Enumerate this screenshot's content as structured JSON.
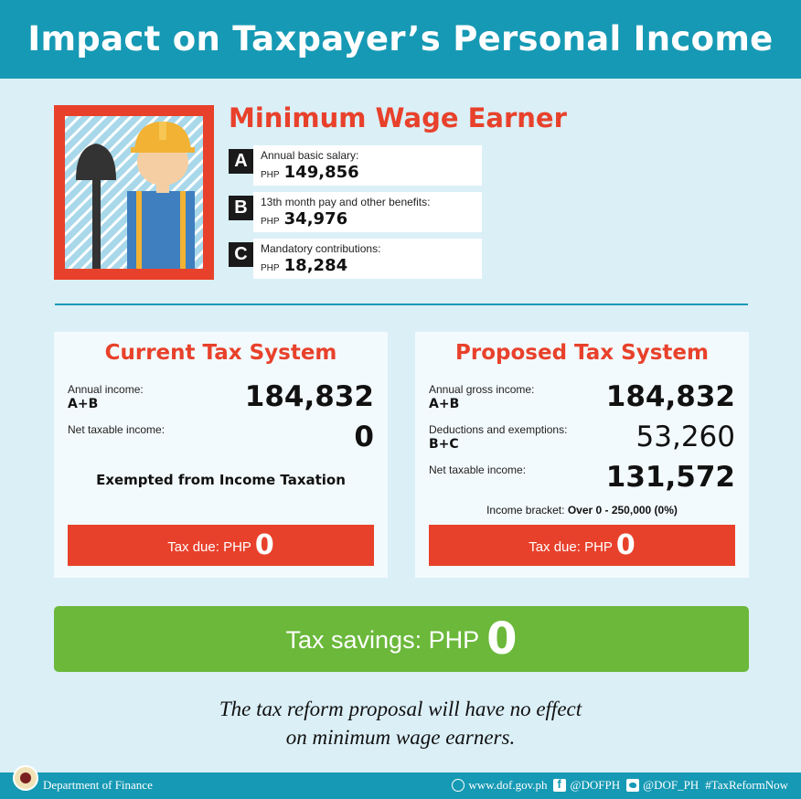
{
  "header": {
    "title": "Impact on Taxpayer’s Personal Income"
  },
  "profile": {
    "title": "Minimum Wage Earner",
    "items": [
      {
        "letter": "A",
        "label": "Annual basic salary:",
        "currency": "PHP",
        "value": "149,856"
      },
      {
        "letter": "B",
        "label": "13th month pay and other benefits:",
        "currency": "PHP",
        "value": "34,976"
      },
      {
        "letter": "C",
        "label": "Mandatory contributions:",
        "currency": "PHP",
        "value": "18,284"
      }
    ]
  },
  "current": {
    "title": "Current Tax System",
    "rows": [
      {
        "label": "Annual income:",
        "sub": "A+B",
        "value": "184,832"
      },
      {
        "label": "Net taxable income:",
        "sub": "",
        "value": "0"
      }
    ],
    "exempt_text": "Exempted from Income Taxation",
    "tax_due_label": "Tax due: PHP",
    "tax_due_value": "0"
  },
  "proposed": {
    "title": "Proposed Tax System",
    "rows": [
      {
        "label": "Annual gross income:",
        "sub": "A+B",
        "value": "184,832"
      },
      {
        "label": "Deductions and exemptions:",
        "sub": "B+C",
        "value": "53,260"
      },
      {
        "label": "Net taxable income:",
        "sub": "",
        "value": "131,572"
      }
    ],
    "bracket_label": "Income bracket:",
    "bracket_value": "Over 0 - 250,000 (0%)",
    "tax_due_label": "Tax due: PHP",
    "tax_due_value": "0"
  },
  "savings": {
    "label": "Tax savings: PHP",
    "value": "0"
  },
  "note": {
    "line1": "The tax reform proposal will have no effect",
    "line2": "on minimum wage earners."
  },
  "footer": {
    "department": "Department of Finance",
    "website": "www.dof.gov.ph",
    "facebook": "@DOFPH",
    "twitter": "@DOF_PH",
    "hashtag": "#TaxReformNow"
  },
  "colors": {
    "header": "#1699b4",
    "accent_red": "#e8412b",
    "savings_green": "#6bb83b",
    "background": "#dbeff7"
  }
}
